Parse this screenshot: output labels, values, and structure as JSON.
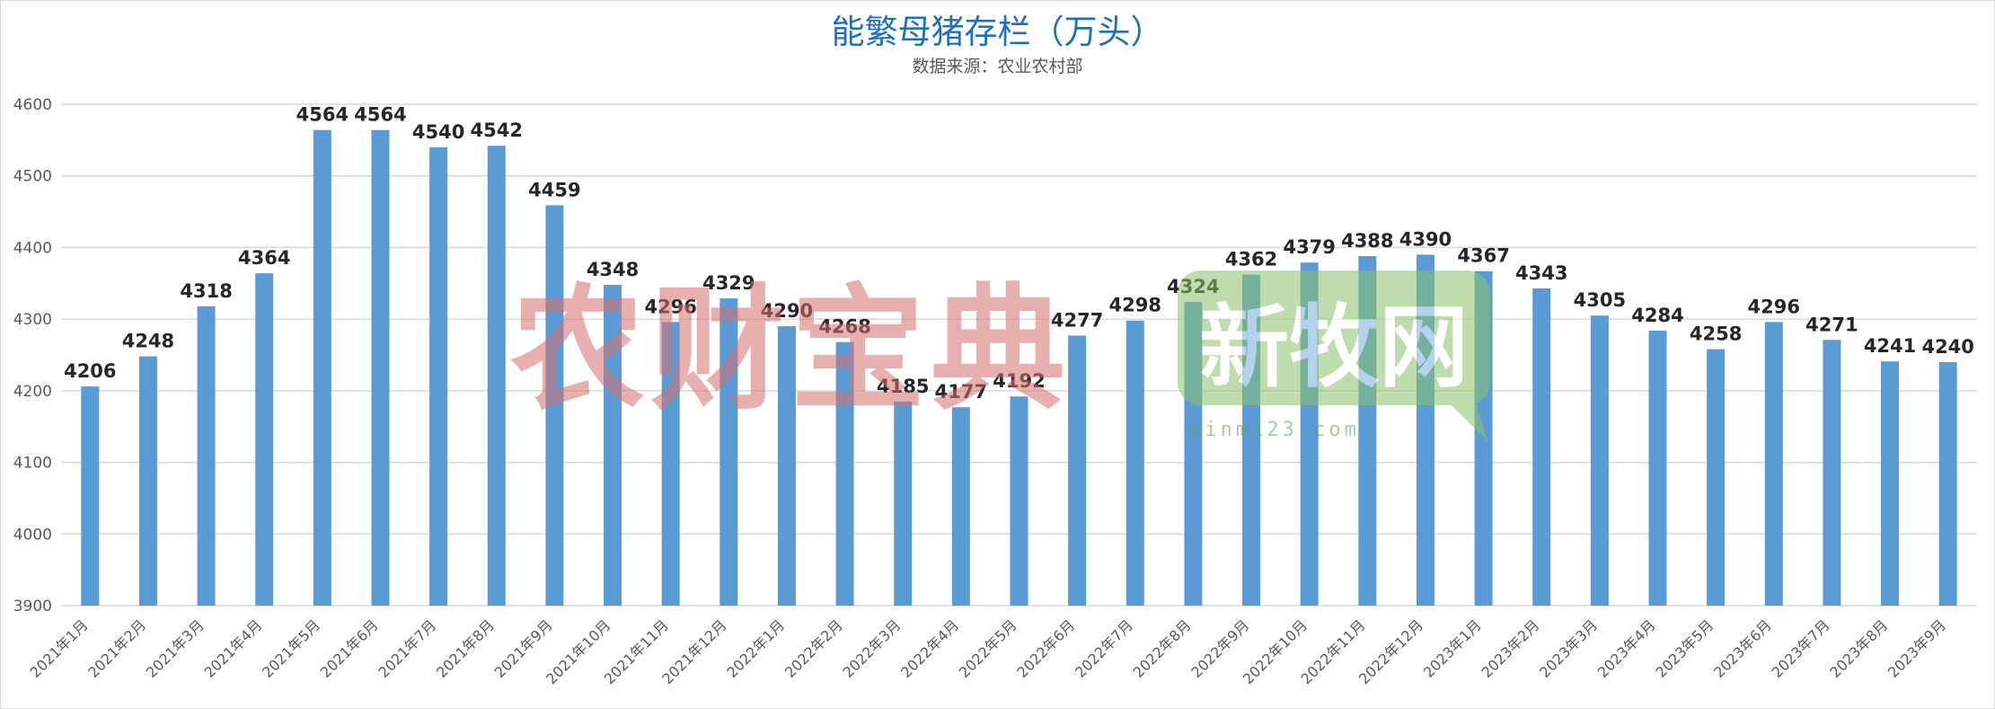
{
  "chart_data": {
    "type": "bar",
    "title": "能繁母猪存栏（万头）",
    "subtitle": "数据来源：农业农村部",
    "categories": [
      "2021年1月",
      "2021年2月",
      "2021年3月",
      "2021年4月",
      "2021年5月",
      "2021年6月",
      "2021年7月",
      "2021年8月",
      "2021年9月",
      "2021年10月",
      "2021年11月",
      "2021年12月",
      "2022年1月",
      "2022年2月",
      "2022年3月",
      "2022年4月",
      "2022年5月",
      "2022年6月",
      "2022年7月",
      "2022年8月",
      "2022年9月",
      "2022年10月",
      "2022年11月",
      "2022年12月",
      "2023年1月",
      "2023年2月",
      "2023年3月",
      "2023年4月",
      "2023年5月",
      "2023年6月",
      "2023年7月",
      "2023年8月",
      "2023年9月"
    ],
    "values": [
      4206,
      4248,
      4318,
      4364,
      4564,
      4564,
      4540,
      4542,
      4459,
      4348,
      4296,
      4329,
      4290,
      4268,
      4185,
      4177,
      4192,
      4277,
      4298,
      4324,
      4362,
      4379,
      4388,
      4390,
      4367,
      4343,
      4305,
      4284,
      4258,
      4296,
      4271,
      4241,
      4240
    ],
    "ylim": [
      3900,
      4600
    ],
    "yticks": [
      3900,
      4000,
      4100,
      4200,
      4300,
      4400,
      4500,
      4600
    ],
    "grid": true,
    "legend": "none",
    "bar_color": "#5b9bd5",
    "label_color": "#262626"
  },
  "watermarks": {
    "left": "农财宝典",
    "right_logo": "新牧网",
    "right_url": "xinm123.com",
    "left_color": "#d4706c",
    "right_color": "#8cc26a"
  }
}
